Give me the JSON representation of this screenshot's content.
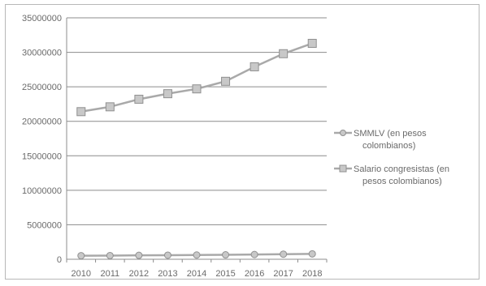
{
  "chart_data": {
    "type": "line",
    "title": "",
    "xlabel": "",
    "ylabel": "",
    "categories": [
      "2010",
      "2011",
      "2012",
      "2013",
      "2014",
      "2015",
      "2016",
      "2017",
      "2018"
    ],
    "ylim": [
      0,
      35000000
    ],
    "y_ticks": [
      "0",
      "5000000",
      "10000000",
      "15000000",
      "20000000",
      "25000000",
      "30000000",
      "35000000"
    ],
    "grid": true,
    "legend_position": "right",
    "series": [
      {
        "name": "SMMLV (en pesos colombianos)",
        "legend_lines": [
          "SMMLV (en pesos",
          "colombianos)"
        ],
        "marker": "circle",
        "color": "#a9a9a9",
        "values": [
          515000,
          535600,
          566700,
          589500,
          616000,
          644350,
          689455,
          737717,
          781242
        ]
      },
      {
        "name": "Salario congresistas (en pesos colombianos)",
        "legend_lines": [
          "Salario congresistas (en",
          "pesos colombianos)"
        ],
        "marker": "square",
        "color": "#a9a9a9",
        "values": [
          21400000,
          22100000,
          23200000,
          24000000,
          24700000,
          25800000,
          27900000,
          29800000,
          31300000
        ]
      }
    ]
  }
}
